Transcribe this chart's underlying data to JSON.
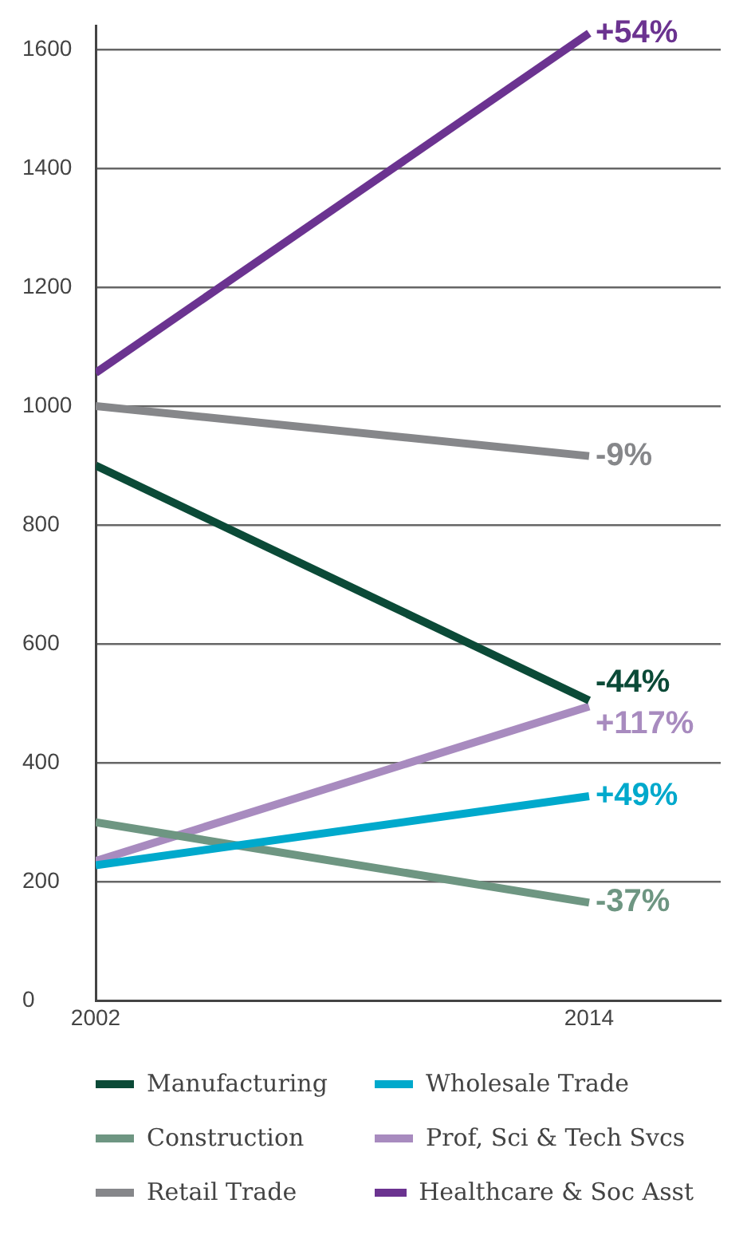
{
  "chart_data": {
    "type": "line",
    "x": [
      2002,
      2014
    ],
    "xlim": [
      2002,
      2017.2
    ],
    "xticks": [
      2002,
      2014
    ],
    "ylim": [
      0,
      1640
    ],
    "yticks": [
      0,
      200,
      400,
      600,
      800,
      1000,
      1200,
      1400,
      1600
    ],
    "grid": "y",
    "legend": "bottom",
    "marker": "none",
    "line_style": "solid",
    "series": [
      {
        "name": "Manufacturing",
        "color": "#0b4a37",
        "values": [
          900,
          505
        ]
      },
      {
        "name": "Wholesale Trade",
        "color": "#00a9cc",
        "values": [
          228,
          344
        ]
      },
      {
        "name": "Construction",
        "color": "#6e9682",
        "values": [
          300,
          165
        ]
      },
      {
        "name": "Prof, Sci & Tech Svcs",
        "color": "#a88bbf",
        "values": [
          235,
          495
        ]
      },
      {
        "name": "Retail Trade",
        "color": "#86878a",
        "values": [
          1000,
          916
        ]
      },
      {
        "name": "Healthcare & Soc Asst",
        "color": "#6b3390",
        "values": [
          1056,
          1627
        ]
      }
    ],
    "annotations": [
      "-44%",
      "+49%",
      "-37%",
      "+117%",
      "-9%",
      "+54%"
    ]
  }
}
